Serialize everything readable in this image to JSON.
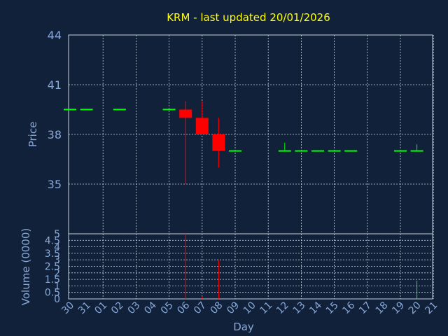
{
  "colors": {
    "background": "#12213a",
    "title": "#ffff00",
    "axis_text": "#87a8d8",
    "grid": "#c8d0dc",
    "up": "#00ff00",
    "down": "#ff0000"
  },
  "chart_data": [
    {
      "type": "candlestick",
      "title": "KRM - last updated 20/01/2026",
      "ylabel": "Price",
      "ylim": [
        32,
        44
      ],
      "yticks": [
        35,
        38,
        41,
        44
      ],
      "grid": true,
      "x_categories": [
        "30",
        "31",
        "01",
        "02",
        "03",
        "04",
        "05",
        "06",
        "07",
        "08",
        "09",
        "10",
        "11",
        "12",
        "13",
        "14",
        "15",
        "16",
        "17",
        "18",
        "19",
        "20",
        "21"
      ],
      "candles": [
        {
          "x": 0,
          "open": 39.5,
          "high": 39.5,
          "low": 39.5,
          "close": 39.5
        },
        {
          "x": 1,
          "open": 39.5,
          "high": 39.5,
          "low": 39.5,
          "close": 39.5
        },
        {
          "x": 3,
          "open": 39.5,
          "high": 39.5,
          "low": 39.5,
          "close": 39.5
        },
        {
          "x": 6,
          "open": 39.5,
          "high": 39.5,
          "low": 39.5,
          "close": 39.5
        },
        {
          "x": 7,
          "open": 39.5,
          "high": 40.0,
          "low": 35.0,
          "close": 39.0
        },
        {
          "x": 8,
          "open": 39.0,
          "high": 40.0,
          "low": 38.0,
          "close": 38.0
        },
        {
          "x": 9,
          "open": 38.0,
          "high": 39.0,
          "low": 36.0,
          "close": 37.0
        },
        {
          "x": 10,
          "open": 37.0,
          "high": 37.0,
          "low": 37.0,
          "close": 37.0
        },
        {
          "x": 13,
          "open": 37.0,
          "high": 37.5,
          "low": 37.0,
          "close": 37.0
        },
        {
          "x": 14,
          "open": 37.0,
          "high": 37.0,
          "low": 37.0,
          "close": 37.0
        },
        {
          "x": 15,
          "open": 37.0,
          "high": 37.0,
          "low": 37.0,
          "close": 37.0
        },
        {
          "x": 16,
          "open": 37.0,
          "high": 37.0,
          "low": 37.0,
          "close": 37.0
        },
        {
          "x": 17,
          "open": 37.0,
          "high": 37.0,
          "low": 37.0,
          "close": 37.0
        },
        {
          "x": 20,
          "open": 37.0,
          "high": 37.0,
          "low": 37.0,
          "close": 37.0
        },
        {
          "x": 21,
          "open": 37.0,
          "high": 37.4,
          "low": 37.0,
          "close": 37.0
        }
      ]
    },
    {
      "type": "bar",
      "xlabel": "Day",
      "ylabel": "Volume (0000)",
      "ylim": [
        0,
        5
      ],
      "yticks": [
        "0",
        "0.5",
        "1",
        "1.5",
        "2",
        "2.5",
        "3",
        "3.5",
        "4",
        "4.5",
        "5"
      ],
      "grid": true,
      "x_categories": [
        "30",
        "31",
        "01",
        "02",
        "03",
        "04",
        "05",
        "06",
        "07",
        "08",
        "09",
        "10",
        "11",
        "12",
        "13",
        "14",
        "15",
        "16",
        "17",
        "18",
        "19",
        "20",
        "21"
      ],
      "bars": [
        {
          "x": 7,
          "value": 5.0,
          "direction": "down"
        },
        {
          "x": 8,
          "value": 0.2,
          "direction": "down"
        },
        {
          "x": 9,
          "value": 3.0,
          "direction": "down"
        },
        {
          "x": 21,
          "value": 1.4,
          "direction": "up"
        }
      ]
    }
  ]
}
